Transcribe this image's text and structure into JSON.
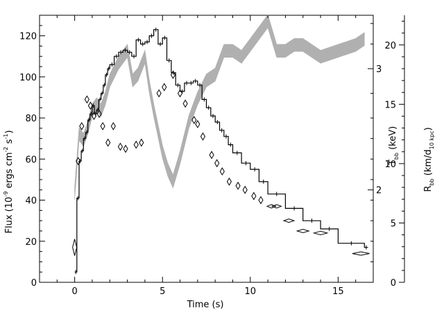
{
  "chart_data": {
    "type": "line",
    "title": "",
    "xlabel": "Time (s)",
    "ylabel_left": {
      "main": "Flux (10",
      "exp1": "-9",
      "mid": " ergs cm",
      "exp2": "-2",
      "mid2": " s",
      "exp3": "-1",
      "end": ")"
    },
    "ylabel_right_inner": {
      "main": "T",
      "sub": "bb",
      "end": " (keV)"
    },
    "ylabel_right_outer": {
      "main": "R",
      "sub": "bb",
      "mid": " (km/d",
      "sub2": "10 kpc",
      "end": ")"
    },
    "xlim": [
      -2,
      17
    ],
    "ylim_flux": [
      0,
      130
    ],
    "ylim_radius": [
      0,
      22.5
    ],
    "xticks": [
      0,
      5,
      10,
      15
    ],
    "yticks_flux": [
      0,
      20,
      40,
      60,
      80,
      100,
      120
    ],
    "yticks_radius": [
      0,
      5,
      10,
      15,
      20
    ],
    "yticks_temp": [
      {
        "label": "2",
        "flux": 45
      },
      {
        "label": "3",
        "flux": 104
      }
    ],
    "series": [
      {
        "style": "step",
        "color": "#000000",
        "points": [
          [
            0.0,
            5
          ],
          [
            0.125,
            41
          ],
          [
            0.25,
            59
          ],
          [
            0.375,
            64
          ],
          [
            0.5,
            70
          ],
          [
            0.625,
            73
          ],
          [
            0.75,
            79
          ],
          [
            0.875,
            82
          ],
          [
            1.0,
            86
          ],
          [
            1.125,
            82
          ],
          [
            1.25,
            84
          ],
          [
            1.375,
            89
          ],
          [
            1.5,
            92
          ],
          [
            1.625,
            96
          ],
          [
            1.75,
            101
          ],
          [
            1.875,
            104
          ],
          [
            2.0,
            106
          ],
          [
            2.25,
            110
          ],
          [
            2.5,
            112
          ],
          [
            2.75,
            113
          ],
          [
            3.0,
            112
          ],
          [
            3.25,
            110
          ],
          [
            3.5,
            118
          ],
          [
            3.75,
            116
          ],
          [
            4.0,
            117
          ],
          [
            4.25,
            120
          ],
          [
            4.5,
            123
          ],
          [
            4.75,
            116
          ],
          [
            5.0,
            119
          ],
          [
            5.25,
            108
          ],
          [
            5.5,
            102
          ],
          [
            5.75,
            96
          ],
          [
            6.0,
            93
          ],
          [
            6.25,
            97
          ],
          [
            6.5,
            97
          ],
          [
            6.75,
            98
          ],
          [
            7.0,
            96
          ],
          [
            7.25,
            89
          ],
          [
            7.5,
            85
          ],
          [
            7.75,
            81
          ],
          [
            8.0,
            78
          ],
          [
            8.25,
            74
          ],
          [
            8.5,
            71
          ],
          [
            8.75,
            67
          ],
          [
            9.0,
            63
          ],
          [
            9.5,
            58
          ],
          [
            10.0,
            55
          ],
          [
            10.5,
            49
          ],
          [
            11.0,
            43
          ],
          [
            12.0,
            36
          ],
          [
            13.0,
            30
          ],
          [
            14.0,
            26
          ],
          [
            15.0,
            19
          ],
          [
            16.5,
            17
          ]
        ]
      },
      {
        "style": "diamonds",
        "color": "#000000",
        "points": [
          [
            0.0,
            17
          ],
          [
            0.2,
            59
          ],
          [
            0.4,
            76
          ],
          [
            0.7,
            89
          ],
          [
            0.9,
            86
          ],
          [
            1.1,
            81
          ],
          [
            1.4,
            82
          ],
          [
            1.6,
            76
          ],
          [
            1.9,
            68
          ],
          [
            2.2,
            76
          ],
          [
            2.6,
            66
          ],
          [
            2.9,
            65
          ],
          [
            3.5,
            67
          ],
          [
            3.8,
            68
          ],
          [
            4.8,
            92
          ],
          [
            5.1,
            95
          ],
          [
            5.6,
            101
          ],
          [
            6.0,
            92
          ],
          [
            6.3,
            87
          ],
          [
            6.8,
            79
          ],
          [
            7.0,
            77
          ],
          [
            7.3,
            71
          ],
          [
            7.8,
            62
          ],
          [
            8.1,
            58
          ],
          [
            8.4,
            54
          ],
          [
            8.8,
            49
          ],
          [
            9.3,
            47
          ],
          [
            9.7,
            45
          ],
          [
            10.2,
            42
          ],
          [
            10.6,
            40
          ],
          [
            11.2,
            37
          ],
          [
            11.5,
            37
          ],
          [
            12.2,
            30
          ],
          [
            13.0,
            25
          ],
          [
            14.0,
            24
          ],
          [
            16.3,
            14
          ]
        ]
      },
      {
        "style": "band",
        "color": "#b0b0b0",
        "points": [
          [
            0.0,
            7.5
          ],
          [
            0.25,
            12.5
          ],
          [
            0.5,
            12.0
          ],
          [
            0.75,
            13.0
          ],
          [
            1.0,
            14.5
          ],
          [
            1.25,
            15.0
          ],
          [
            1.5,
            14.5
          ],
          [
            1.75,
            15.5
          ],
          [
            2.0,
            17.0
          ],
          [
            2.5,
            18.5
          ],
          [
            3.0,
            19.5
          ],
          [
            3.3,
            17.0
          ],
          [
            3.6,
            17.5
          ],
          [
            4.0,
            19.0
          ],
          [
            4.25,
            16.5
          ],
          [
            4.5,
            14.5
          ],
          [
            5.0,
            11.0
          ],
          [
            5.3,
            9.5
          ],
          [
            5.6,
            8.5
          ],
          [
            6.0,
            10.5
          ],
          [
            6.5,
            13.5
          ],
          [
            7.0,
            15.5
          ],
          [
            7.5,
            17.0
          ],
          [
            8.0,
            17.5
          ],
          [
            8.5,
            19.5
          ],
          [
            9.0,
            19.5
          ],
          [
            9.5,
            19.0
          ],
          [
            10.0,
            20.0
          ],
          [
            11.0,
            22.0
          ],
          [
            11.5,
            19.5
          ],
          [
            12.0,
            19.5
          ],
          [
            12.5,
            20.0
          ],
          [
            13.0,
            20.0
          ],
          [
            14.0,
            19.0
          ],
          [
            15.0,
            19.5
          ],
          [
            16.0,
            20.0
          ],
          [
            16.5,
            20.5
          ]
        ],
        "halfwidth": 0.55
      }
    ],
    "grid": false,
    "legend": "none"
  }
}
